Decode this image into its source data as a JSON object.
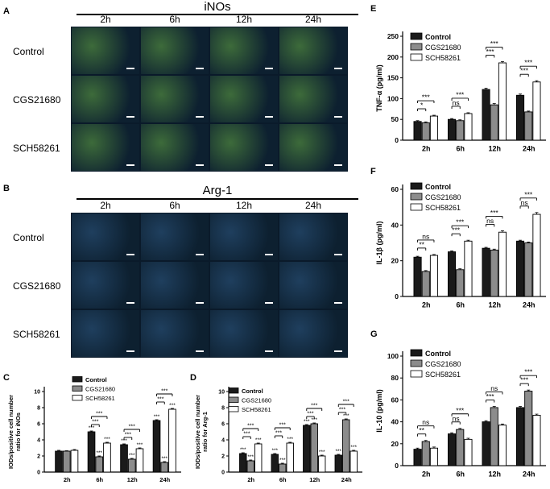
{
  "panel_a": {
    "letter": "A",
    "title": "iNOs",
    "columns": [
      "2h",
      "6h",
      "12h",
      "24h"
    ],
    "rows": [
      "Control",
      "CGS21680",
      "SCH58261"
    ],
    "tint": "#3d6b3a"
  },
  "panel_b": {
    "letter": "B",
    "title": "Arg-1",
    "columns": [
      "2h",
      "6h",
      "12h",
      "24h"
    ],
    "rows": [
      "Control",
      "CGS21680",
      "SCH58261"
    ],
    "tint": "#1f3f5e"
  },
  "colors": {
    "control": "#1a1a1a",
    "cgs": "#8c8c8c",
    "sch": "#ffffff",
    "micro_bg": "#0d2030"
  },
  "chart_data": [
    {
      "id": "C",
      "letter": "C",
      "type": "bar",
      "categories": [
        "2h",
        "6h",
        "12h",
        "24h"
      ],
      "ylabel": "IODs/positive cell number ratio for iNOs",
      "ylabel_lines": [
        "IODs/positive cell number",
        "ratio for iNOs"
      ],
      "ylim": [
        0,
        10
      ],
      "yticks": [
        0,
        2,
        4,
        6,
        8,
        10
      ],
      "legend": "top-right",
      "series": [
        {
          "name": "Control",
          "values": [
            2.6,
            5.0,
            3.4,
            6.4
          ],
          "errors": [
            0.1,
            0.1,
            0.1,
            0.1
          ]
        },
        {
          "name": "CGS21680",
          "values": [
            2.6,
            1.9,
            1.6,
            1.2
          ],
          "errors": [
            0.05,
            0.1,
            0.1,
            0.1
          ]
        },
        {
          "name": "SCH58261",
          "values": [
            2.7,
            3.6,
            2.9,
            7.8
          ],
          "errors": [
            0.1,
            0.1,
            0.1,
            0.1
          ]
        }
      ],
      "bar_labels": [
        [
          "",
          "",
          ""
        ],
        [
          "***",
          "***",
          "***"
        ],
        [
          "***",
          "***",
          "***"
        ],
        [
          "***",
          "***",
          "***"
        ]
      ],
      "brackets": [
        {
          "cat": 1,
          "from": 0,
          "to": 1,
          "label": "***",
          "level": 0
        },
        {
          "cat": 1,
          "from": 0,
          "to": 2,
          "label": "***",
          "level": 1
        },
        {
          "cat": 2,
          "from": 0,
          "to": 1,
          "label": "***",
          "level": 0
        },
        {
          "cat": 2,
          "from": 0,
          "to": 2,
          "label": "***",
          "level": 1
        },
        {
          "cat": 3,
          "from": 0,
          "to": 1,
          "label": "***",
          "level": 0
        },
        {
          "cat": 3,
          "from": 0,
          "to": 2,
          "label": "***",
          "level": 1
        }
      ]
    },
    {
      "id": "D",
      "letter": "D",
      "type": "bar",
      "categories": [
        "2h",
        "6h",
        "12h",
        "24h"
      ],
      "ylabel": "IODs/positive cell number ratio for Arg-1",
      "ylabel_lines": [
        "IODs/positive cell number",
        "ratio for Arg-1"
      ],
      "ylim": [
        0,
        10
      ],
      "yticks": [
        0,
        2,
        4,
        6,
        8,
        10
      ],
      "legend": "top-right",
      "series": [
        {
          "name": "Control",
          "values": [
            2.3,
            2.2,
            5.8,
            2.1
          ],
          "errors": [
            0.1,
            0.1,
            0.1,
            0.1
          ]
        },
        {
          "name": "CGS21680",
          "values": [
            1.4,
            1.0,
            6.0,
            6.5
          ],
          "errors": [
            0.1,
            0.1,
            0.1,
            0.1
          ]
        },
        {
          "name": "SCH58261",
          "values": [
            3.5,
            3.6,
            2.0,
            2.6
          ],
          "errors": [
            0.1,
            0.1,
            0.1,
            0.1
          ]
        }
      ],
      "bar_labels": [
        [
          "***",
          "***",
          "***"
        ],
        [
          "***",
          "***",
          "***"
        ],
        [
          "***",
          "***",
          "***"
        ],
        [
          "***",
          "***",
          "***"
        ]
      ],
      "brackets": [
        {
          "cat": 0,
          "from": 0,
          "to": 1,
          "label": "***",
          "level": 0
        },
        {
          "cat": 0,
          "from": 0,
          "to": 2,
          "label": "***",
          "level": 1
        },
        {
          "cat": 1,
          "from": 0,
          "to": 1,
          "label": "***",
          "level": 0
        },
        {
          "cat": 1,
          "from": 0,
          "to": 2,
          "label": "***",
          "level": 1
        },
        {
          "cat": 2,
          "from": 0,
          "to": 1,
          "label": "***",
          "level": 0
        },
        {
          "cat": 2,
          "from": 0,
          "to": 2,
          "label": "***",
          "level": 1
        },
        {
          "cat": 3,
          "from": 0,
          "to": 1,
          "label": "***",
          "level": 0
        },
        {
          "cat": 3,
          "from": 0,
          "to": 2,
          "label": "***",
          "level": 1
        }
      ]
    },
    {
      "id": "E",
      "letter": "E",
      "type": "bar",
      "categories": [
        "2h",
        "6h",
        "12h",
        "24h"
      ],
      "ylabel": "TNF-α (pg/ml)",
      "ylabel_lines": [
        "TNF-α (pg/ml)"
      ],
      "ylim": [
        0,
        250
      ],
      "yticks": [
        0,
        50,
        100,
        150,
        200,
        250
      ],
      "legend": "top-left",
      "series": [
        {
          "name": "Control",
          "values": [
            45,
            50,
            122,
            108
          ],
          "errors": [
            2,
            2,
            3,
            3
          ]
        },
        {
          "name": "CGS21680",
          "values": [
            42,
            47,
            85,
            68
          ],
          "errors": [
            2,
            2,
            3,
            2
          ]
        },
        {
          "name": "SCH58261",
          "values": [
            58,
            64,
            186,
            140
          ],
          "errors": [
            2,
            2,
            3,
            3
          ]
        }
      ],
      "bar_labels": [],
      "brackets": [
        {
          "cat": 0,
          "from": 0,
          "to": 1,
          "label": "*",
          "level": 0
        },
        {
          "cat": 0,
          "from": 0,
          "to": 2,
          "label": "***",
          "level": 1
        },
        {
          "cat": 1,
          "from": 0,
          "to": 1,
          "label": "ns",
          "level": 0
        },
        {
          "cat": 1,
          "from": 0,
          "to": 2,
          "label": "***",
          "level": 1
        },
        {
          "cat": 2,
          "from": 0,
          "to": 1,
          "label": "***",
          "level": 0
        },
        {
          "cat": 2,
          "from": 0,
          "to": 2,
          "label": "***",
          "level": 1
        },
        {
          "cat": 3,
          "from": 0,
          "to": 1,
          "label": "***",
          "level": 0
        },
        {
          "cat": 3,
          "from": 0,
          "to": 2,
          "label": "***",
          "level": 1
        }
      ]
    },
    {
      "id": "F",
      "letter": "F",
      "type": "bar",
      "categories": [
        "2h",
        "6h",
        "12h",
        "24h"
      ],
      "ylabel": "IL-1β (pg/ml)",
      "ylabel_lines": [
        "IL-1β (pg/ml)"
      ],
      "ylim": [
        0,
        60
      ],
      "yticks": [
        0,
        20,
        40,
        60
      ],
      "legend": "top-left",
      "series": [
        {
          "name": "Control",
          "values": [
            22,
            25,
            27,
            31
          ],
          "errors": [
            0.5,
            0.5,
            0.5,
            0.5
          ]
        },
        {
          "name": "CGS21680",
          "values": [
            14,
            15,
            26,
            30
          ],
          "errors": [
            0.5,
            0.5,
            0.5,
            0.5
          ]
        },
        {
          "name": "SCH58261",
          "values": [
            23,
            31,
            36,
            46
          ],
          "errors": [
            0.5,
            0.5,
            0.8,
            1.0
          ]
        }
      ],
      "bar_labels": [],
      "brackets": [
        {
          "cat": 0,
          "from": 0,
          "to": 1,
          "label": "**",
          "level": 0
        },
        {
          "cat": 0,
          "from": 0,
          "to": 2,
          "label": "ns",
          "level": 1
        },
        {
          "cat": 1,
          "from": 0,
          "to": 1,
          "label": "***",
          "level": 0
        },
        {
          "cat": 1,
          "from": 0,
          "to": 2,
          "label": "***",
          "level": 1
        },
        {
          "cat": 2,
          "from": 0,
          "to": 1,
          "label": "ns",
          "level": 0
        },
        {
          "cat": 2,
          "from": 0,
          "to": 2,
          "label": "***",
          "level": 1
        },
        {
          "cat": 3,
          "from": 0,
          "to": 1,
          "label": "ns",
          "level": 0
        },
        {
          "cat": 3,
          "from": 0,
          "to": 2,
          "label": "***",
          "level": 1
        }
      ]
    },
    {
      "id": "G",
      "letter": "G",
      "type": "bar",
      "categories": [
        "2h",
        "6h",
        "12h",
        "24h"
      ],
      "ylabel": "IL-10 (pg/ml)",
      "ylabel_lines": [
        "IL-10 (pg/ml)"
      ],
      "ylim": [
        0,
        100
      ],
      "yticks": [
        0,
        20,
        40,
        60,
        80,
        100
      ],
      "legend": "top-left",
      "series": [
        {
          "name": "Control",
          "values": [
            15,
            29,
            40,
            53
          ],
          "errors": [
            1,
            1,
            1,
            1
          ]
        },
        {
          "name": "CGS21680",
          "values": [
            22,
            33,
            53,
            68
          ],
          "errors": [
            1,
            1,
            1,
            1
          ]
        },
        {
          "name": "SCH58261",
          "values": [
            16,
            24,
            37,
            46
          ],
          "errors": [
            1,
            1,
            1,
            1
          ]
        }
      ],
      "bar_labels": [],
      "brackets": [
        {
          "cat": 0,
          "from": 0,
          "to": 1,
          "label": "**",
          "level": 0
        },
        {
          "cat": 0,
          "from": 0,
          "to": 2,
          "label": "ns",
          "level": 1
        },
        {
          "cat": 1,
          "from": 0,
          "to": 1,
          "label": "ns",
          "level": 0
        },
        {
          "cat": 1,
          "from": 0,
          "to": 2,
          "label": "***",
          "level": 1
        },
        {
          "cat": 2,
          "from": 0,
          "to": 1,
          "label": "***",
          "level": 0
        },
        {
          "cat": 2,
          "from": 0,
          "to": 2,
          "label": "ns",
          "level": 1
        },
        {
          "cat": 3,
          "from": 0,
          "to": 1,
          "label": "***",
          "level": 0
        },
        {
          "cat": 3,
          "from": 0,
          "to": 2,
          "label": "***",
          "level": 1
        }
      ]
    }
  ]
}
